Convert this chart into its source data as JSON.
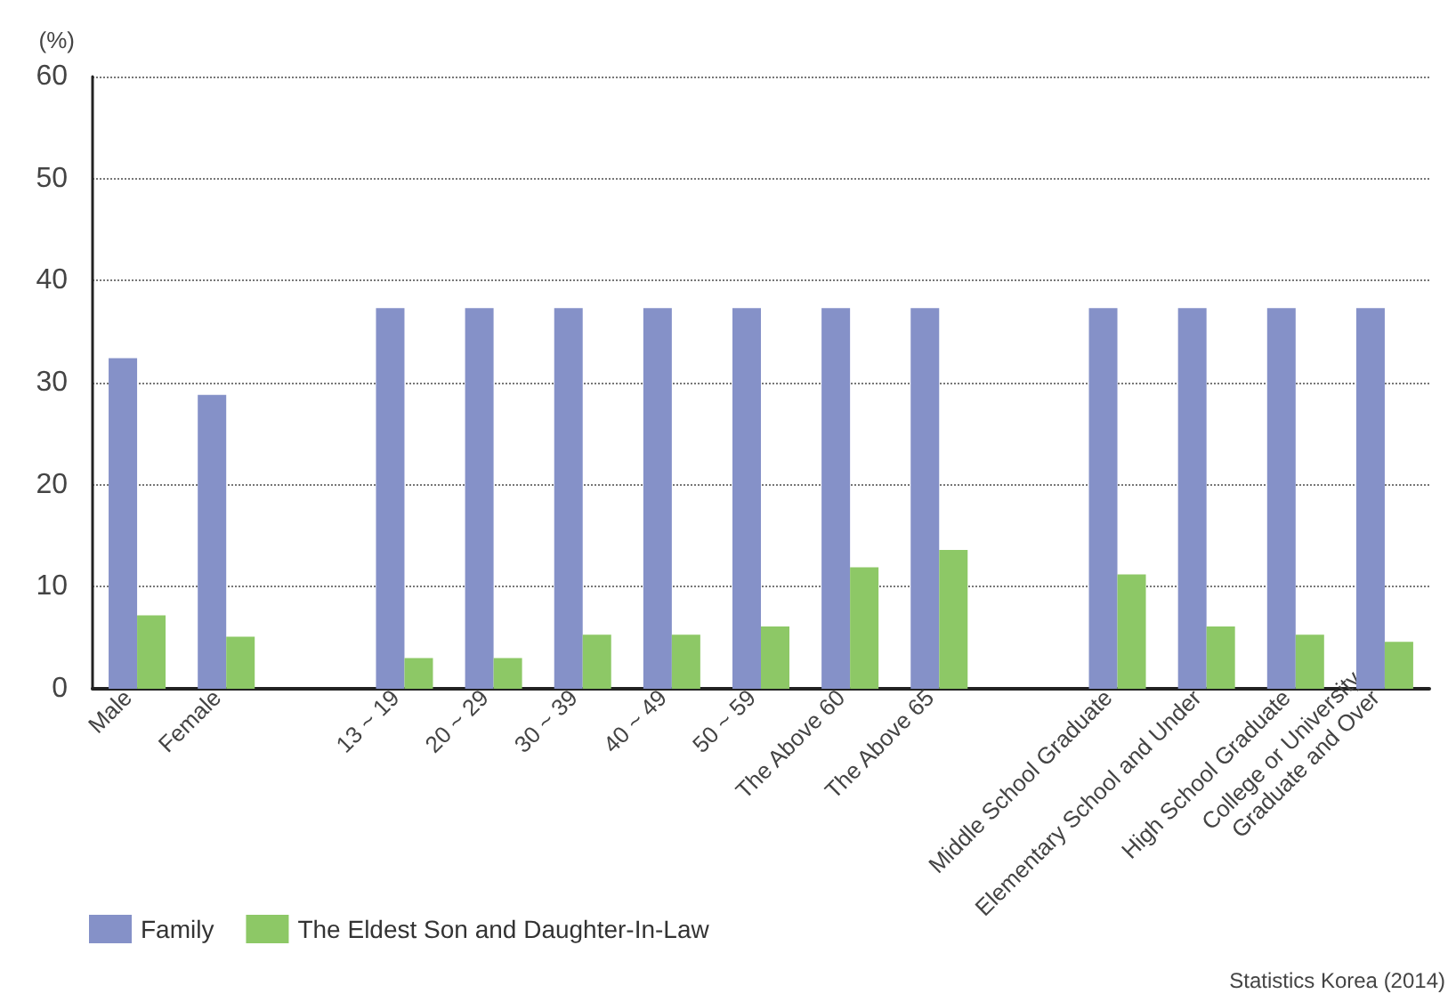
{
  "chart_data": {
    "type": "bar",
    "ylabel": "(%)",
    "categories": [
      "Male",
      "Female",
      null,
      "13 ~ 19",
      "20 ~ 29",
      "30 ~ 39",
      "40 ~ 49",
      "50 ~ 59",
      "The Above 60",
      "The Above 65",
      null,
      "Middle School Graduate",
      "Elementary School and Under",
      "High School Graduate",
      "College or University\nGraduate and Over"
    ],
    "series": [
      {
        "name": "Family",
        "color": "#8591c8",
        "values": [
          32.4,
          28.8,
          null,
          37.3,
          37.3,
          37.3,
          37.3,
          37.3,
          37.3,
          37.3,
          null,
          37.3,
          37.3,
          37.3,
          37.3
        ]
      },
      {
        "name": "The Eldest Son and Daughter-In-Law",
        "color": "#8dc866",
        "values": [
          7.2,
          5.1,
          null,
          3.0,
          3.0,
          5.3,
          5.3,
          6.1,
          11.9,
          13.6,
          null,
          11.2,
          6.1,
          5.3,
          4.6
        ]
      }
    ],
    "ylim": [
      0,
      60
    ],
    "yticks": [
      0,
      10,
      20,
      30,
      40,
      50,
      60
    ],
    "grid": "y",
    "legend": "bottom left",
    "annotations": [
      "Statistics Korea (2014)"
    ]
  }
}
